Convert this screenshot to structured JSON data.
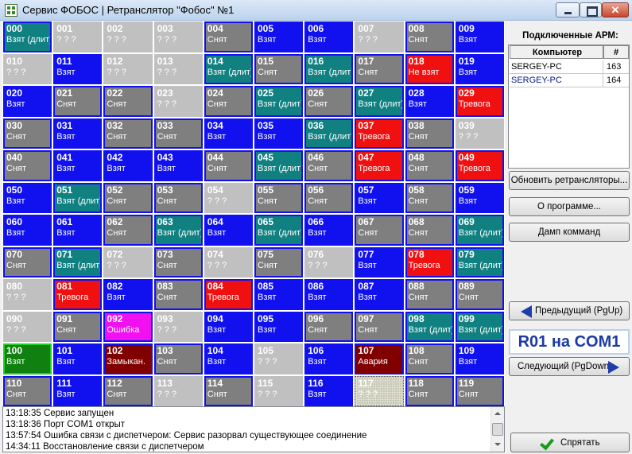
{
  "window": {
    "title": "Сервис ФОБОС | Ретранслятор \"Фобос\" №1",
    "close_glyph": "✕"
  },
  "grid": [
    {
      "num": "000",
      "status": "Взят (длит)",
      "color": "teal"
    },
    {
      "num": "001",
      "status": "? ? ?",
      "color": "lgray"
    },
    {
      "num": "002",
      "status": "? ? ?",
      "color": "lgray"
    },
    {
      "num": "003",
      "status": "? ? ?",
      "color": "lgray"
    },
    {
      "num": "004",
      "status": "Снят",
      "color": "gray"
    },
    {
      "num": "005",
      "status": "Взят",
      "color": "blue"
    },
    {
      "num": "006",
      "status": "Взят",
      "color": "blue"
    },
    {
      "num": "007",
      "status": "? ? ?",
      "color": "lgray"
    },
    {
      "num": "008",
      "status": "Снят",
      "color": "gray"
    },
    {
      "num": "009",
      "status": "Взят",
      "color": "blue"
    },
    {
      "num": "010",
      "status": "? ? ?",
      "color": "lgray"
    },
    {
      "num": "011",
      "status": "Взят",
      "color": "blue"
    },
    {
      "num": "012",
      "status": "? ? ?",
      "color": "lgray"
    },
    {
      "num": "013",
      "status": "? ? ?",
      "color": "lgray"
    },
    {
      "num": "014",
      "status": "Взят (длит)",
      "color": "teal"
    },
    {
      "num": "015",
      "status": "Снят",
      "color": "gray"
    },
    {
      "num": "016",
      "status": "Взят (длит)",
      "color": "teal"
    },
    {
      "num": "017",
      "status": "Снят",
      "color": "gray"
    },
    {
      "num": "018",
      "status": "Не взят",
      "color": "red"
    },
    {
      "num": "019",
      "status": "Взят",
      "color": "blue"
    },
    {
      "num": "020",
      "status": "Взят",
      "color": "blue"
    },
    {
      "num": "021",
      "status": "Снят",
      "color": "gray"
    },
    {
      "num": "022",
      "status": "Снят",
      "color": "gray"
    },
    {
      "num": "023",
      "status": "? ? ?",
      "color": "lgray"
    },
    {
      "num": "024",
      "status": "Снят",
      "color": "gray"
    },
    {
      "num": "025",
      "status": "Взят (длит)",
      "color": "teal"
    },
    {
      "num": "026",
      "status": "Снят",
      "color": "gray"
    },
    {
      "num": "027",
      "status": "Взят (длит)",
      "color": "teal"
    },
    {
      "num": "028",
      "status": "Взят",
      "color": "blue"
    },
    {
      "num": "029",
      "status": "Тревога",
      "color": "red"
    },
    {
      "num": "030",
      "status": "Снят",
      "color": "gray"
    },
    {
      "num": "031",
      "status": "Взят",
      "color": "blue"
    },
    {
      "num": "032",
      "status": "Снят",
      "color": "gray"
    },
    {
      "num": "033",
      "status": "Снят",
      "color": "gray"
    },
    {
      "num": "034",
      "status": "Взят",
      "color": "blue"
    },
    {
      "num": "035",
      "status": "Взят",
      "color": "blue"
    },
    {
      "num": "036",
      "status": "Взят (длит)",
      "color": "teal"
    },
    {
      "num": "037",
      "status": "Тревога",
      "color": "red"
    },
    {
      "num": "038",
      "status": "Снят",
      "color": "gray"
    },
    {
      "num": "039",
      "status": "? ? ?",
      "color": "lgray"
    },
    {
      "num": "040",
      "status": "Снят",
      "color": "gray"
    },
    {
      "num": "041",
      "status": "Взят",
      "color": "blue"
    },
    {
      "num": "042",
      "status": "Взят",
      "color": "blue"
    },
    {
      "num": "043",
      "status": "Взят",
      "color": "blue"
    },
    {
      "num": "044",
      "status": "Снят",
      "color": "gray"
    },
    {
      "num": "045",
      "status": "Взят (длит)",
      "color": "teal"
    },
    {
      "num": "046",
      "status": "Снят",
      "color": "gray"
    },
    {
      "num": "047",
      "status": "Тревога",
      "color": "red"
    },
    {
      "num": "048",
      "status": "Снят",
      "color": "gray"
    },
    {
      "num": "049",
      "status": "Тревога",
      "color": "red"
    },
    {
      "num": "050",
      "status": "Взят",
      "color": "blue"
    },
    {
      "num": "051",
      "status": "Взят (длит)",
      "color": "teal"
    },
    {
      "num": "052",
      "status": "Снят",
      "color": "gray"
    },
    {
      "num": "053",
      "status": "Снят",
      "color": "gray"
    },
    {
      "num": "054",
      "status": "? ? ?",
      "color": "lgray"
    },
    {
      "num": "055",
      "status": "Снят",
      "color": "gray"
    },
    {
      "num": "056",
      "status": "Снят",
      "color": "gray"
    },
    {
      "num": "057",
      "status": "Взят",
      "color": "blue"
    },
    {
      "num": "058",
      "status": "Снят",
      "color": "gray"
    },
    {
      "num": "059",
      "status": "Взят",
      "color": "blue"
    },
    {
      "num": "060",
      "status": "Взят",
      "color": "blue"
    },
    {
      "num": "061",
      "status": "Взят",
      "color": "blue"
    },
    {
      "num": "062",
      "status": "Снят",
      "color": "gray"
    },
    {
      "num": "063",
      "status": "Взят (длит)",
      "color": "teal"
    },
    {
      "num": "064",
      "status": "Взят",
      "color": "blue"
    },
    {
      "num": "065",
      "status": "Взят (длит)",
      "color": "teal"
    },
    {
      "num": "066",
      "status": "Взят",
      "color": "blue"
    },
    {
      "num": "067",
      "status": "Снят",
      "color": "gray"
    },
    {
      "num": "068",
      "status": "Снят",
      "color": "gray"
    },
    {
      "num": "069",
      "status": "Взят (длит)",
      "color": "teal"
    },
    {
      "num": "070",
      "status": "Снят",
      "color": "gray"
    },
    {
      "num": "071",
      "status": "Взят (длит)",
      "color": "teal"
    },
    {
      "num": "072",
      "status": "? ? ?",
      "color": "lgray"
    },
    {
      "num": "073",
      "status": "Снят",
      "color": "gray"
    },
    {
      "num": "074",
      "status": "? ? ?",
      "color": "lgray"
    },
    {
      "num": "075",
      "status": "Снят",
      "color": "gray"
    },
    {
      "num": "076",
      "status": "? ? ?",
      "color": "lgray"
    },
    {
      "num": "077",
      "status": "Взят",
      "color": "blue"
    },
    {
      "num": "078",
      "status": "Тревога",
      "color": "red"
    },
    {
      "num": "079",
      "status": "Взят (длит)",
      "color": "teal"
    },
    {
      "num": "080",
      "status": "? ? ?",
      "color": "lgray"
    },
    {
      "num": "081",
      "status": "Тревога",
      "color": "red"
    },
    {
      "num": "082",
      "status": "Взят",
      "color": "blue"
    },
    {
      "num": "083",
      "status": "Снят",
      "color": "gray"
    },
    {
      "num": "084",
      "status": "Тревога",
      "color": "red"
    },
    {
      "num": "085",
      "status": "Взят",
      "color": "blue"
    },
    {
      "num": "086",
      "status": "Взят",
      "color": "blue"
    },
    {
      "num": "087",
      "status": "Взят",
      "color": "blue"
    },
    {
      "num": "088",
      "status": "Снят",
      "color": "gray"
    },
    {
      "num": "089",
      "status": "Снят",
      "color": "gray"
    },
    {
      "num": "090",
      "status": "? ? ?",
      "color": "lgray"
    },
    {
      "num": "091",
      "status": "Снят",
      "color": "gray"
    },
    {
      "num": "092",
      "status": "Ошибка",
      "color": "magenta"
    },
    {
      "num": "093",
      "status": "? ? ?",
      "color": "lgray"
    },
    {
      "num": "094",
      "status": "Взят",
      "color": "blue"
    },
    {
      "num": "095",
      "status": "Взят",
      "color": "blue"
    },
    {
      "num": "096",
      "status": "Снят",
      "color": "gray"
    },
    {
      "num": "097",
      "status": "Снят",
      "color": "gray"
    },
    {
      "num": "098",
      "status": "Взят (длит)",
      "color": "teal"
    },
    {
      "num": "099",
      "status": "Взят (длит)",
      "color": "teal"
    },
    {
      "num": "100",
      "status": "Взят",
      "color": "green"
    },
    {
      "num": "101",
      "status": "Взят",
      "color": "blue"
    },
    {
      "num": "102",
      "status": "Замыкан.",
      "color": "maroon"
    },
    {
      "num": "103",
      "status": "Снят",
      "color": "gray"
    },
    {
      "num": "104",
      "status": "Взят",
      "color": "blue"
    },
    {
      "num": "105",
      "status": "? ? ?",
      "color": "lgray"
    },
    {
      "num": "106",
      "status": "Взят",
      "color": "blue"
    },
    {
      "num": "107",
      "status": "Авария",
      "color": "maroon"
    },
    {
      "num": "108",
      "status": "Снят",
      "color": "gray"
    },
    {
      "num": "109",
      "status": "Взят",
      "color": "blue"
    },
    {
      "num": "110",
      "status": "Снят",
      "color": "gray"
    },
    {
      "num": "111",
      "status": "Взят",
      "color": "blue"
    },
    {
      "num": "112",
      "status": "Снят",
      "color": "gray"
    },
    {
      "num": "113",
      "status": "? ? ?",
      "color": "lgray"
    },
    {
      "num": "114",
      "status": "Снят",
      "color": "gray"
    },
    {
      "num": "115",
      "status": "? ? ?",
      "color": "lgray"
    },
    {
      "num": "116",
      "status": "Взят",
      "color": "blue"
    },
    {
      "num": "117",
      "status": "? ? ?",
      "color": "dotted"
    },
    {
      "num": "118",
      "status": "Снят",
      "color": "gray"
    },
    {
      "num": "119",
      "status": "Снят",
      "color": "gray"
    }
  ],
  "log": [
    "13:18:35 Сервис запущен",
    "13:18:36 Порт COM1 открыт",
    "13:57:54 Ошибка связи с диспетчером: Сервис разорвал существующее соединение",
    "14:34:11 Восстановление связи с диспетчером"
  ],
  "right_panel": {
    "title": "Подключенные АРМ:",
    "table": {
      "headers": [
        "Компьютер",
        "#"
      ],
      "rows": [
        {
          "computer": "SERGEY-PC",
          "id": "163"
        },
        {
          "computer": "SERGEY-PC",
          "id": "164"
        }
      ]
    },
    "buttons": {
      "refresh": "Обновить ретрансляторы...",
      "about": "О программе...",
      "dump": "Дамп комманд",
      "prev": "Предыдущий (PgUp)",
      "next": "Следующий (PgDown)",
      "hide": "Спрятать"
    },
    "relay_label": "R01 на COM1"
  },
  "colors": {
    "blue": "#1111f0",
    "gray": "#7f7f7f",
    "lgray": "#c0c0c0",
    "teal": "#108080",
    "red": "#f01010",
    "magenta": "#f010f0",
    "maroon": "#800000",
    "green": "#108010"
  }
}
